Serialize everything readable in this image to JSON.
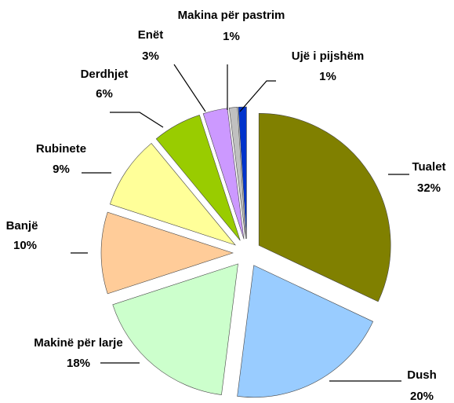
{
  "chart_data": {
    "type": "pie",
    "categories": [
      "Tualet",
      "Dush",
      "Makinë për larje",
      "Banjë",
      "Rubinete",
      "Derdhjet",
      "Enët",
      "Makina për pastrim",
      "Ujë i pijshëm"
    ],
    "values": [
      32,
      20,
      18,
      10,
      9,
      6,
      3,
      1,
      1
    ],
    "value_labels": [
      "32%",
      "20%",
      "18%",
      "10%",
      "9%",
      "6%",
      "3%",
      "1%",
      "1%"
    ],
    "colors": [
      "#808000",
      "#99ccff",
      "#ccffcc",
      "#ffcc99",
      "#ffff99",
      "#99cc00",
      "#cc99ff",
      "#c0c0c0",
      "#0033cc"
    ]
  }
}
